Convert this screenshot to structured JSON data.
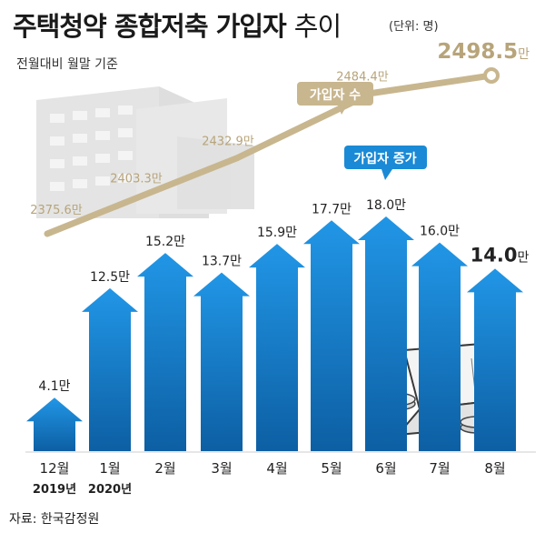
{
  "header": {
    "title_bold": "주택청약 종합저축 가입자",
    "title_thin": "추이",
    "unit": "(단위: 명)",
    "subtitle": "전월대비 월말 기준"
  },
  "source": "자료: 한국감정원",
  "chart_data": {
    "type": "bar",
    "categories": [
      "12월",
      "1월",
      "2월",
      "3월",
      "4월",
      "5월",
      "6월",
      "7월",
      "8월"
    ],
    "year_labels": [
      "2019년",
      "2020년",
      "",
      "",
      "",
      "",
      "",
      "",
      ""
    ],
    "series": [
      {
        "name": "가입자 증가",
        "type": "bar",
        "values": [
          4.1,
          12.5,
          15.2,
          13.7,
          15.9,
          17.7,
          18.0,
          16.0,
          14.0
        ],
        "labels": [
          "4.1만",
          "12.5만",
          "15.2만",
          "13.7만",
          "15.9만",
          "17.7만",
          "18.0만",
          "16.0만",
          "14.0만"
        ],
        "color": "#1a8ad6"
      },
      {
        "name": "가입자 수",
        "type": "line",
        "points": [
          {
            "label": "2375.6만",
            "value": 2375.6
          },
          {
            "label": "2403.3만",
            "value": 2403.3
          },
          {
            "label": "2432.9만",
            "value": 2432.9
          },
          {
            "label": "2484.4만",
            "value": 2484.4
          },
          {
            "label_number": "2498.5",
            "label_unit": "만",
            "value": 2498.5
          }
        ],
        "color": "#c8b68f"
      }
    ],
    "highlight_bar_label": {
      "number": "14.0",
      "unit": "만"
    },
    "bar_color_top": "#2196e6",
    "bar_color_bottom": "#0d5fa3"
  }
}
